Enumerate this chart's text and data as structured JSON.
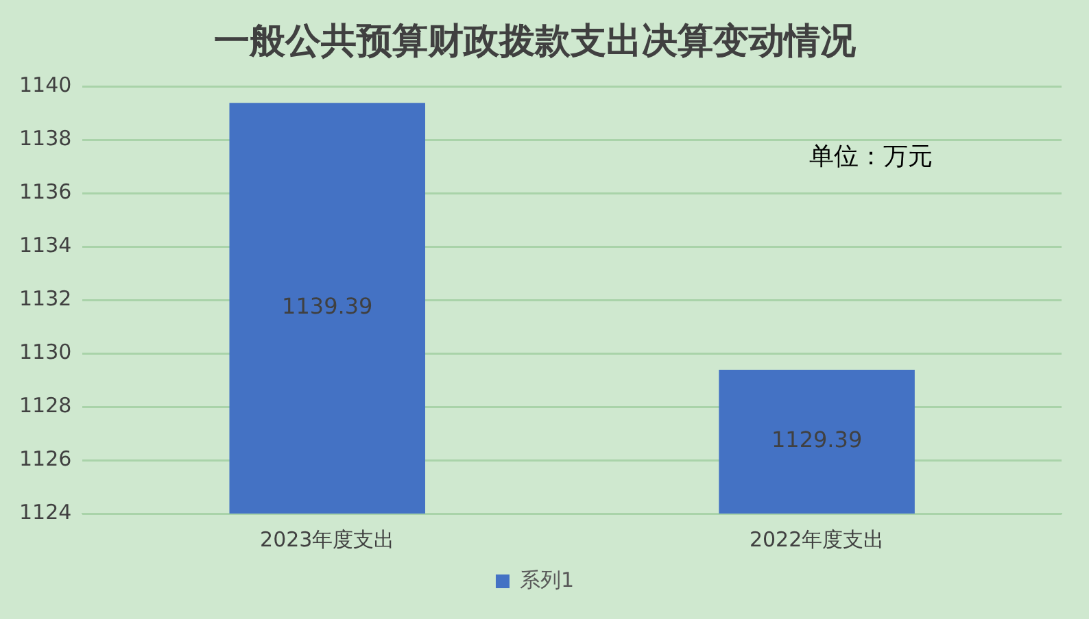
{
  "chart_data": {
    "type": "bar",
    "title": "一般公共预算财政拨款支出决算变动情况",
    "categories": [
      "2023年度支出",
      "2022年度支出"
    ],
    "series": [
      {
        "name": "系列1",
        "color": "#4472c4",
        "values": [
          1139.39,
          1129.39
        ]
      }
    ],
    "ylim": [
      1124,
      1140
    ],
    "yticks": [
      1124,
      1126,
      1128,
      1130,
      1132,
      1134,
      1136,
      1138,
      1140
    ],
    "grid": "y",
    "legend": "bottom",
    "data_labels": true,
    "annotations": [
      "单位：万元"
    ]
  }
}
